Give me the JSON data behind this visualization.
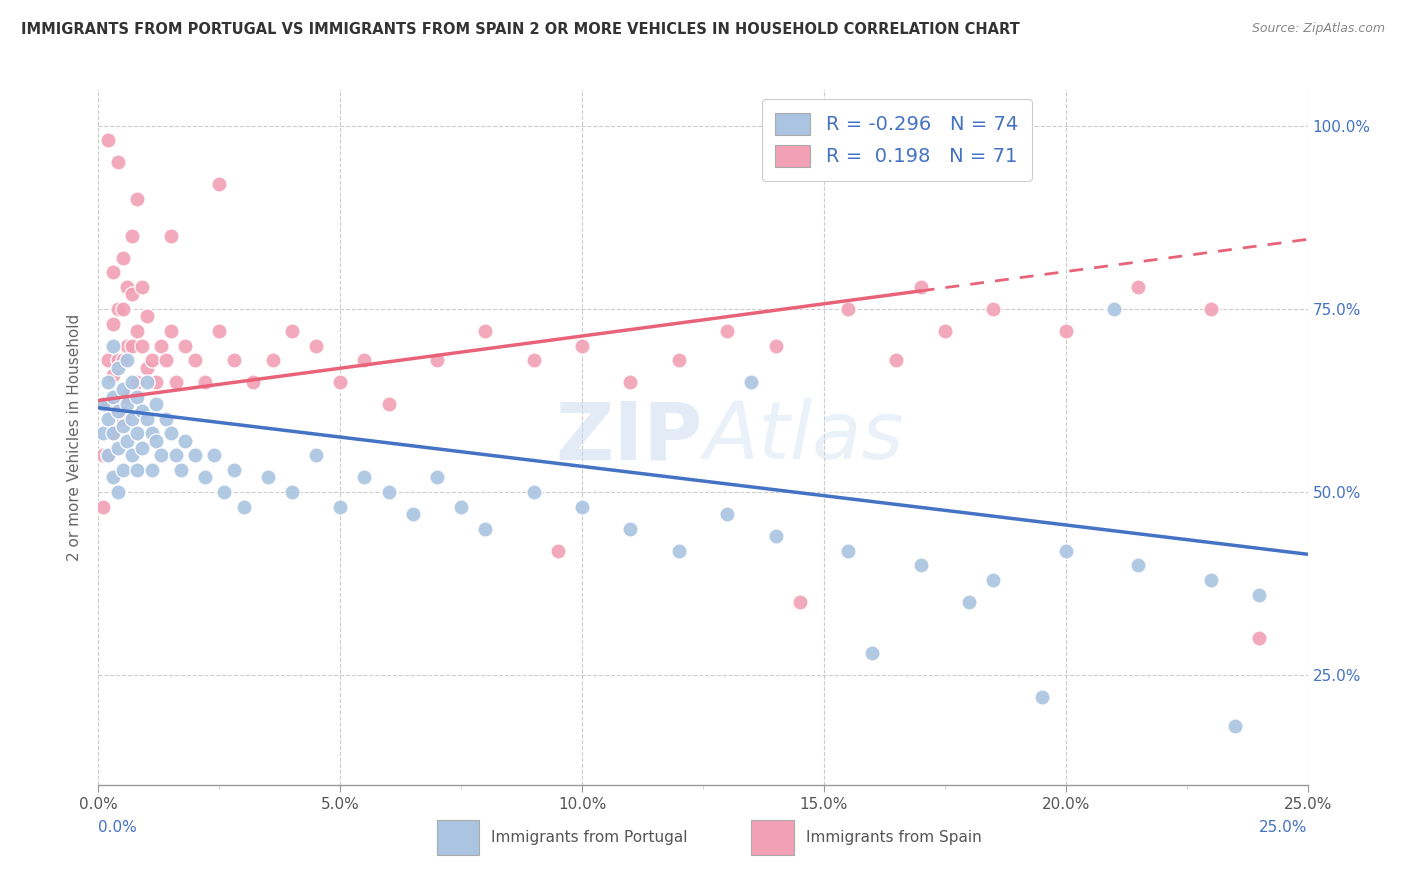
{
  "title": "IMMIGRANTS FROM PORTUGAL VS IMMIGRANTS FROM SPAIN 2 OR MORE VEHICLES IN HOUSEHOLD CORRELATION CHART",
  "source": "Source: ZipAtlas.com",
  "ylabel_left": "2 or more Vehicles in Household",
  "xlim": [
    0.0,
    0.25
  ],
  "ylim": [
    0.1,
    1.05
  ],
  "R_portugal": -0.296,
  "N_portugal": 74,
  "R_spain": 0.198,
  "N_spain": 71,
  "color_portugal": "#aac4e2",
  "color_spain": "#f2a0b5",
  "color_trendline_portugal": "#4472c4",
  "color_trendline_spain": "#e8637a",
  "legend_portugal_label": "Immigrants from Portugal",
  "legend_spain_label": "Immigrants from Spain",
  "watermark": "ZIPAtlas",
  "portugal_x": [
    0.001,
    0.001,
    0.002,
    0.002,
    0.002,
    0.003,
    0.003,
    0.003,
    0.003,
    0.004,
    0.004,
    0.004,
    0.004,
    0.005,
    0.005,
    0.005,
    0.006,
    0.006,
    0.006,
    0.007,
    0.007,
    0.007,
    0.008,
    0.008,
    0.008,
    0.009,
    0.009,
    0.01,
    0.01,
    0.011,
    0.011,
    0.012,
    0.012,
    0.013,
    0.014,
    0.015,
    0.016,
    0.017,
    0.018,
    0.02,
    0.022,
    0.024,
    0.026,
    0.028,
    0.03,
    0.035,
    0.04,
    0.045,
    0.05,
    0.055,
    0.06,
    0.065,
    0.07,
    0.075,
    0.08,
    0.09,
    0.1,
    0.11,
    0.12,
    0.13,
    0.14,
    0.155,
    0.17,
    0.185,
    0.2,
    0.215,
    0.23,
    0.24,
    0.135,
    0.16,
    0.18,
    0.195,
    0.21,
    0.235
  ],
  "portugal_y": [
    0.62,
    0.58,
    0.65,
    0.6,
    0.55,
    0.7,
    0.63,
    0.58,
    0.52,
    0.67,
    0.61,
    0.56,
    0.5,
    0.64,
    0.59,
    0.53,
    0.68,
    0.62,
    0.57,
    0.65,
    0.6,
    0.55,
    0.63,
    0.58,
    0.53,
    0.61,
    0.56,
    0.65,
    0.6,
    0.58,
    0.53,
    0.62,
    0.57,
    0.55,
    0.6,
    0.58,
    0.55,
    0.53,
    0.57,
    0.55,
    0.52,
    0.55,
    0.5,
    0.53,
    0.48,
    0.52,
    0.5,
    0.55,
    0.48,
    0.52,
    0.5,
    0.47,
    0.52,
    0.48,
    0.45,
    0.5,
    0.48,
    0.45,
    0.42,
    0.47,
    0.44,
    0.42,
    0.4,
    0.38,
    0.42,
    0.4,
    0.38,
    0.36,
    0.65,
    0.28,
    0.35,
    0.22,
    0.75,
    0.18
  ],
  "spain_x": [
    0.001,
    0.001,
    0.001,
    0.002,
    0.002,
    0.002,
    0.003,
    0.003,
    0.003,
    0.003,
    0.004,
    0.004,
    0.004,
    0.005,
    0.005,
    0.005,
    0.005,
    0.006,
    0.006,
    0.006,
    0.007,
    0.007,
    0.007,
    0.008,
    0.008,
    0.009,
    0.009,
    0.01,
    0.01,
    0.011,
    0.012,
    0.013,
    0.014,
    0.015,
    0.016,
    0.018,
    0.02,
    0.022,
    0.025,
    0.028,
    0.032,
    0.036,
    0.04,
    0.045,
    0.05,
    0.055,
    0.06,
    0.07,
    0.08,
    0.09,
    0.1,
    0.11,
    0.12,
    0.13,
    0.14,
    0.155,
    0.17,
    0.185,
    0.2,
    0.215,
    0.23,
    0.24,
    0.165,
    0.175,
    0.145,
    0.095,
    0.025,
    0.015,
    0.008,
    0.004,
    0.002
  ],
  "spain_y": [
    0.62,
    0.55,
    0.48,
    0.68,
    0.62,
    0.55,
    0.8,
    0.73,
    0.66,
    0.58,
    0.75,
    0.68,
    0.61,
    0.82,
    0.75,
    0.68,
    0.6,
    0.78,
    0.7,
    0.63,
    0.85,
    0.77,
    0.7,
    0.72,
    0.65,
    0.78,
    0.7,
    0.74,
    0.67,
    0.68,
    0.65,
    0.7,
    0.68,
    0.72,
    0.65,
    0.7,
    0.68,
    0.65,
    0.72,
    0.68,
    0.65,
    0.68,
    0.72,
    0.7,
    0.65,
    0.68,
    0.62,
    0.68,
    0.72,
    0.68,
    0.7,
    0.65,
    0.68,
    0.72,
    0.7,
    0.75,
    0.78,
    0.75,
    0.72,
    0.78,
    0.75,
    0.3,
    0.68,
    0.72,
    0.35,
    0.42,
    0.92,
    0.85,
    0.9,
    0.95,
    0.98
  ],
  "trendline_port_y0": 0.615,
  "trendline_port_y1": 0.415,
  "trendline_spain_y0": 0.625,
  "trendline_spain_y1": 0.845
}
